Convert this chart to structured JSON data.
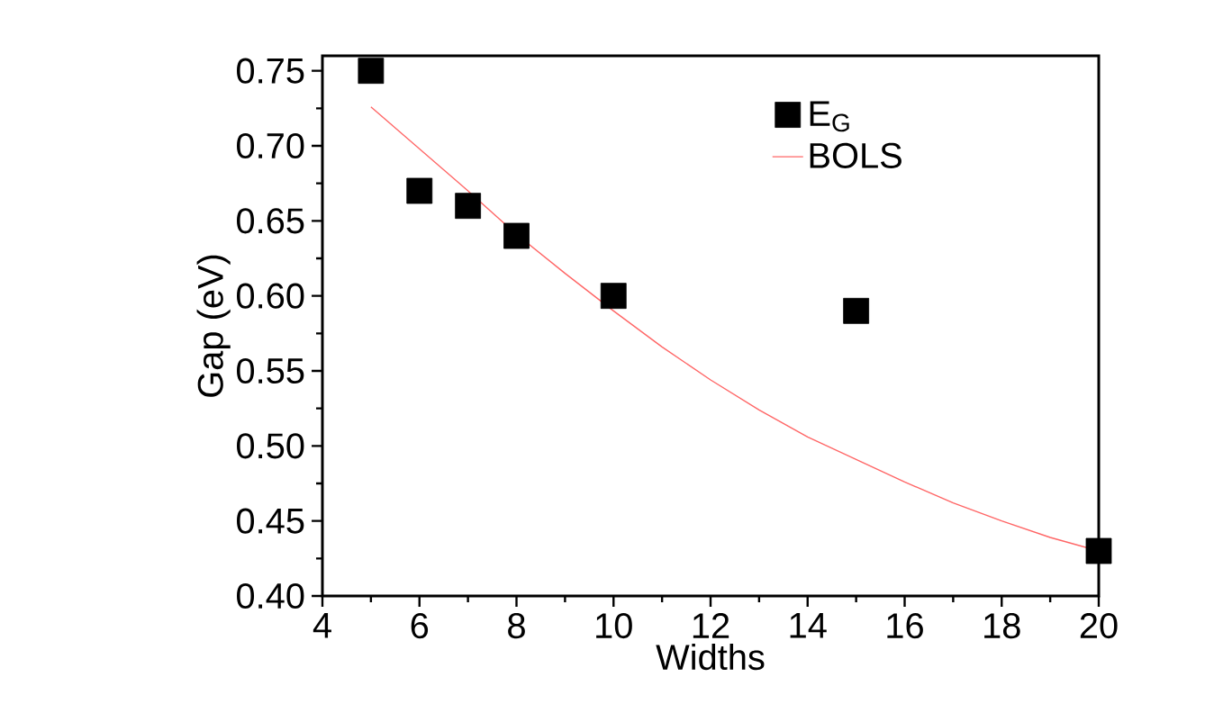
{
  "chart_data": {
    "type": "scatter",
    "xlabel": "Widths",
    "ylabel": "Gap (eV)",
    "xlim": [
      4,
      20
    ],
    "xticks": [
      4,
      6,
      8,
      10,
      12,
      14,
      16,
      18,
      20
    ],
    "ylim": [
      0.4,
      0.76
    ],
    "yticks": [
      {
        "value": 0.4,
        "label": "0.40"
      },
      0.45,
      {
        "value": 0.5,
        "label": "0.50"
      },
      0.55,
      {
        "value": 0.6,
        "label": "0.60"
      },
      0.65,
      {
        "value": 0.7,
        "label": "0.70"
      },
      0.75
    ],
    "legend": "top right",
    "series": [
      {
        "name": "E$_{G}$",
        "color": "#000000",
        "marker": "square",
        "x": [
          5,
          6,
          7,
          8,
          10,
          15,
          20
        ],
        "values": [
          0.75,
          0.67,
          0.66,
          0.64,
          0.6,
          0.59,
          0.43
        ]
      },
      {
        "name": "BOLS",
        "type": "line",
        "color": "#ff6666",
        "x": [
          5,
          6,
          7,
          8,
          9,
          10,
          11,
          12,
          13,
          14,
          15,
          16,
          17,
          18,
          19,
          20
        ],
        "values": [
          0.726,
          0.698,
          0.67,
          0.641,
          0.615,
          0.59,
          0.566,
          0.544,
          0.524,
          0.506,
          0.491,
          0.476,
          0.462,
          0.45,
          0.439,
          0.43
        ]
      }
    ]
  }
}
